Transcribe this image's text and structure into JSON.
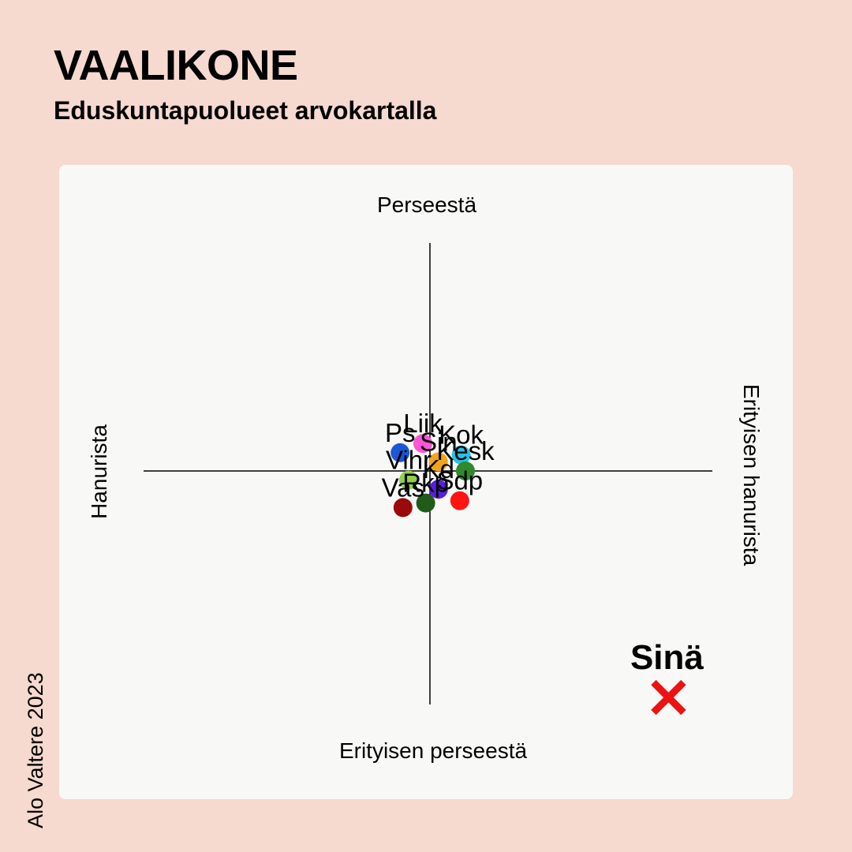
{
  "header": {
    "title": "VAALIKONE",
    "subtitle": "Eduskuntapuolueet arvokartalla"
  },
  "credit": "Alo Valtere 2023",
  "chart_data": {
    "type": "scatter",
    "title": "VAALIKONE",
    "subtitle": "Eduskuntapuolueet arvokartalla",
    "axis_labels": {
      "top": "Perseestä",
      "bottom": "Erityisen perseestä",
      "left": "Hanurista",
      "right": "Erityisen hanurista"
    },
    "xlim": [
      -1,
      1
    ],
    "ylim": [
      -1,
      1
    ],
    "grid": false,
    "legend": "none",
    "points": [
      {
        "label": "Liik",
        "x": -0.05,
        "y": 0.12,
        "color": "#ff55d8"
      },
      {
        "label": "Ps",
        "x": -0.21,
        "y": 0.08,
        "color": "#1c57d6"
      },
      {
        "label": "Sin",
        "x": 0.06,
        "y": 0.04,
        "color": "#f2a51a"
      },
      {
        "label": "Kok",
        "x": 0.22,
        "y": 0.07,
        "color": "#26c3e6"
      },
      {
        "label": "Kesk",
        "x": 0.25,
        "y": 0.0,
        "color": "#2f8a2f"
      },
      {
        "label": "Vihr",
        "x": -0.15,
        "y": -0.04,
        "color": "#8fd14f"
      },
      {
        "label": "Kd",
        "x": 0.06,
        "y": -0.08,
        "color": "#5a1ee0"
      },
      {
        "label": "Sdp",
        "x": 0.21,
        "y": -0.13,
        "color": "#ff1414"
      },
      {
        "label": "Vas",
        "x": -0.19,
        "y": -0.16,
        "color": "#9b0a0a"
      },
      {
        "label": "Rkp",
        "x": -0.03,
        "y": -0.14,
        "color": "#1f5c1a"
      }
    ],
    "you": {
      "label": "Sinä",
      "x": 1.68,
      "y": -0.99,
      "color": "#ee1111"
    }
  }
}
